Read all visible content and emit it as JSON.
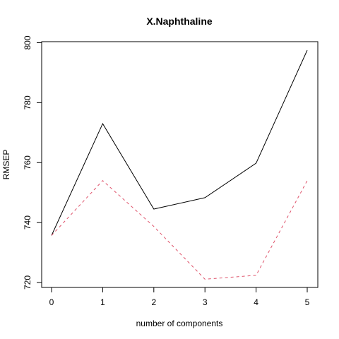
{
  "chart_data": {
    "type": "line",
    "title": "X.Naphthaline",
    "xlabel": "number of components",
    "ylabel": "RMSEP",
    "x": [
      0,
      1,
      2,
      3,
      4,
      5
    ],
    "xlim": [
      0,
      5
    ],
    "ylim": [
      720,
      800
    ],
    "xticks": [
      "0",
      "1",
      "2",
      "3",
      "4",
      "5"
    ],
    "yticks": [
      "720",
      "740",
      "760",
      "780",
      "800"
    ],
    "grid": false,
    "legend": "none",
    "series": [
      {
        "values": [
          735.7,
          773.0,
          744.5,
          748.3,
          759.8,
          797.5
        ],
        "color": "#000000",
        "linestyle": "solid"
      },
      {
        "values": [
          735.7,
          754.0,
          738.7,
          721.1,
          722.4,
          754.0
        ],
        "color": "#DF536B",
        "linestyle": "dashed"
      }
    ]
  }
}
